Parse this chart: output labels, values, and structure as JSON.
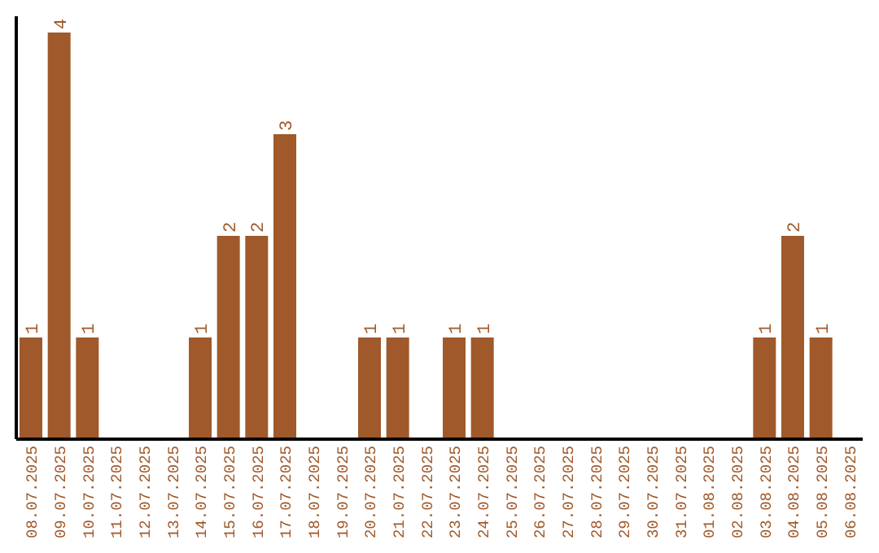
{
  "chart_data": {
    "type": "bar",
    "categories": [
      "08.07.2025",
      "09.07.2025",
      "10.07.2025",
      "11.07.2025",
      "12.07.2025",
      "13.07.2025",
      "14.07.2025",
      "15.07.2025",
      "16.07.2025",
      "17.07.2025",
      "18.07.2025",
      "19.07.2025",
      "20.07.2025",
      "21.07.2025",
      "22.07.2025",
      "23.07.2025",
      "24.07.2025",
      "25.07.2025",
      "26.07.2025",
      "27.07.2025",
      "28.07.2025",
      "29.07.2025",
      "30.07.2025",
      "31.07.2025",
      "01.08.2025",
      "02.08.2025",
      "03.08.2025",
      "04.08.2025",
      "05.08.2025",
      "06.08.2025"
    ],
    "values": [
      1,
      4,
      1,
      0,
      0,
      0,
      1,
      2,
      2,
      3,
      0,
      0,
      1,
      1,
      0,
      1,
      1,
      0,
      0,
      0,
      0,
      0,
      0,
      0,
      0,
      0,
      1,
      2,
      1,
      0
    ],
    "value_labels": [
      "1",
      "4",
      "1",
      null,
      null,
      null,
      "1",
      "2",
      "2",
      "3",
      null,
      null,
      "1",
      "1",
      null,
      "1",
      "1",
      null,
      null,
      null,
      null,
      null,
      null,
      null,
      null,
      null,
      "1",
      "2",
      "1",
      null
    ],
    "color": "#a0592a",
    "grid": false,
    "legend": false
  }
}
